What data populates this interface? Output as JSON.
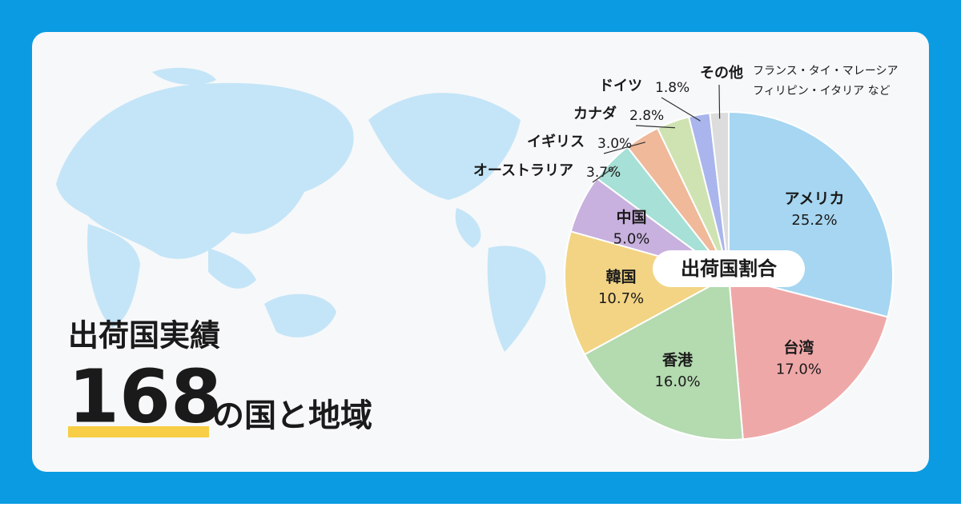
{
  "headline": "出荷国実績",
  "count": "168",
  "count_suffix": "の国と地域",
  "chart_data": {
    "type": "pie",
    "title": "出荷国割合",
    "categories": [
      "アメリカ",
      "台湾",
      "香港",
      "韓国",
      "中国",
      "オーストラリア",
      "イギリス",
      "カナダ",
      "ドイツ",
      "その他"
    ],
    "values": [
      25.2,
      17.0,
      16.0,
      10.7,
      5.0,
      3.7,
      3.0,
      2.8,
      1.8,
      1.6
    ],
    "value_labels": [
      "25.2%",
      "17.0%",
      "16.0%",
      "10.7%",
      "5.0%",
      "3.7%",
      "3.0%",
      "2.8%",
      "1.8%",
      null
    ],
    "colors": [
      "#a6d6f1",
      "#efa8a8",
      "#b4dab0",
      "#f2d484",
      "#c8b1de",
      "#a6e0d6",
      "#efb99a",
      "#cfe3b2",
      "#a9b5ec",
      "#dcdcdc"
    ],
    "other_note": [
      "フランス・タイ・マレーシア",
      "フィリピン・イタリア など"
    ]
  }
}
